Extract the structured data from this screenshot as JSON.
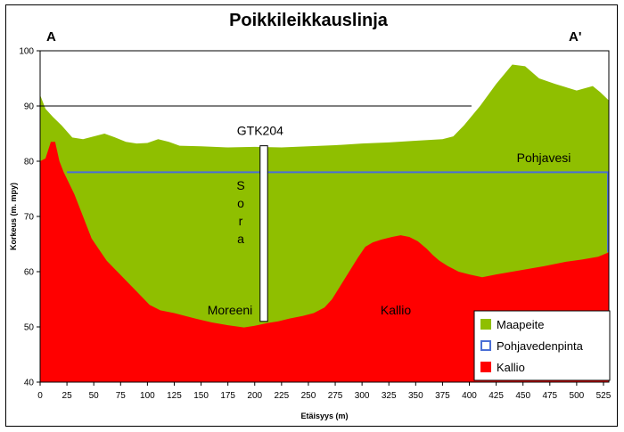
{
  "chart_data": {
    "type": "area",
    "title": "Poikkileikkauslinja",
    "corner_left": "A",
    "corner_right": "A'",
    "xlabel": "Etäisyys (m)",
    "ylabel": "Korkeus (m. mpy)",
    "xlim": [
      0,
      530
    ],
    "ylim": [
      40,
      100
    ],
    "x_ticks": [
      "0",
      "25",
      "50",
      "75",
      "100",
      "125",
      "150",
      "175",
      "200",
      "225",
      "250",
      "275",
      "300",
      "325",
      "350",
      "375",
      "400",
      "425",
      "450",
      "475",
      "500",
      "525"
    ],
    "y_ticks": [
      "40",
      "50",
      "60",
      "70",
      "80",
      "90",
      "100"
    ],
    "reference_line_90": [
      [
        0,
        90
      ],
      [
        402,
        90
      ]
    ],
    "series": [
      {
        "name": "Maapeite",
        "color": "#8fbf00",
        "points": [
          [
            0,
            92
          ],
          [
            5,
            89.5
          ],
          [
            12,
            88
          ],
          [
            20,
            86.5
          ],
          [
            30,
            84.3
          ],
          [
            40,
            84
          ],
          [
            50,
            84.5
          ],
          [
            60,
            85
          ],
          [
            70,
            84.3
          ],
          [
            80,
            83.5
          ],
          [
            90,
            83.2
          ],
          [
            100,
            83.3
          ],
          [
            110,
            84
          ],
          [
            120,
            83.5
          ],
          [
            130,
            82.8
          ],
          [
            150,
            82.7
          ],
          [
            175,
            82.5
          ],
          [
            200,
            82.6
          ],
          [
            225,
            82.5
          ],
          [
            250,
            82.7
          ],
          [
            275,
            82.9
          ],
          [
            300,
            83.2
          ],
          [
            325,
            83.4
          ],
          [
            350,
            83.7
          ],
          [
            375,
            84
          ],
          [
            385,
            84.5
          ],
          [
            395,
            86.5
          ],
          [
            410,
            90
          ],
          [
            425,
            94
          ],
          [
            440,
            97.5
          ],
          [
            452,
            97.2
          ],
          [
            465,
            95
          ],
          [
            480,
            94
          ],
          [
            500,
            92.8
          ],
          [
            515,
            93.6
          ],
          [
            522,
            92.5
          ],
          [
            530,
            91
          ]
        ]
      },
      {
        "name": "Pohjavedenpinta",
        "color": "#4a6fd6",
        "points": [
          [
            25,
            78
          ],
          [
            200,
            78
          ],
          [
            400,
            78
          ],
          [
            530,
            78
          ]
        ]
      },
      {
        "name": "Kallio",
        "color": "#ff0000",
        "points": [
          [
            0,
            80
          ],
          [
            5,
            80.5
          ],
          [
            10,
            83.5
          ],
          [
            14,
            83.5
          ],
          [
            18,
            80
          ],
          [
            22,
            78
          ],
          [
            27,
            76
          ],
          [
            32,
            74
          ],
          [
            40,
            70
          ],
          [
            48,
            66
          ],
          [
            55,
            64
          ],
          [
            62,
            62
          ],
          [
            72,
            60
          ],
          [
            82,
            58
          ],
          [
            92,
            56
          ],
          [
            102,
            54
          ],
          [
            112,
            53
          ],
          [
            125,
            52.5
          ],
          [
            135,
            52
          ],
          [
            145,
            51.5
          ],
          [
            160,
            50.8
          ],
          [
            175,
            50.3
          ],
          [
            190,
            49.9
          ],
          [
            200,
            50.2
          ],
          [
            212,
            50.7
          ],
          [
            222,
            51
          ],
          [
            232,
            51.5
          ],
          [
            245,
            52
          ],
          [
            255,
            52.5
          ],
          [
            265,
            53.5
          ],
          [
            272,
            55
          ],
          [
            280,
            57.5
          ],
          [
            288,
            60
          ],
          [
            296,
            62.5
          ],
          [
            303,
            64.5
          ],
          [
            310,
            65.3
          ],
          [
            318,
            65.8
          ],
          [
            328,
            66.3
          ],
          [
            336,
            66.6
          ],
          [
            344,
            66.3
          ],
          [
            352,
            65.5
          ],
          [
            360,
            64.2
          ],
          [
            366,
            63
          ],
          [
            372,
            62
          ],
          [
            380,
            61
          ],
          [
            390,
            60
          ],
          [
            400,
            59.5
          ],
          [
            412,
            59
          ],
          [
            425,
            59.5
          ],
          [
            440,
            60
          ],
          [
            455,
            60.5
          ],
          [
            470,
            61
          ],
          [
            490,
            61.8
          ],
          [
            505,
            62.2
          ],
          [
            520,
            62.7
          ],
          [
            530,
            63.5
          ]
        ]
      }
    ],
    "borehole": {
      "label": "GTK204",
      "x_from": 205,
      "x_to": 212,
      "top": 82.8,
      "bottom": 51
    },
    "annotations": {
      "sora_letters": [
        "S",
        "o",
        "r",
        "a"
      ],
      "moreeni": "Moreeni",
      "kallio": "Kallio",
      "pohjavesi": "Pohjavesi"
    },
    "legend": {
      "placement": "bottom-right",
      "items": [
        {
          "label": "Maapeite",
          "color": "#8fbf00",
          "kind": "fill"
        },
        {
          "label": "Pohjavedenpinta",
          "color": "#4a6fd6",
          "kind": "outline"
        },
        {
          "label": "Kallio",
          "color": "#ff0000",
          "kind": "fill"
        }
      ]
    },
    "grid": false
  }
}
